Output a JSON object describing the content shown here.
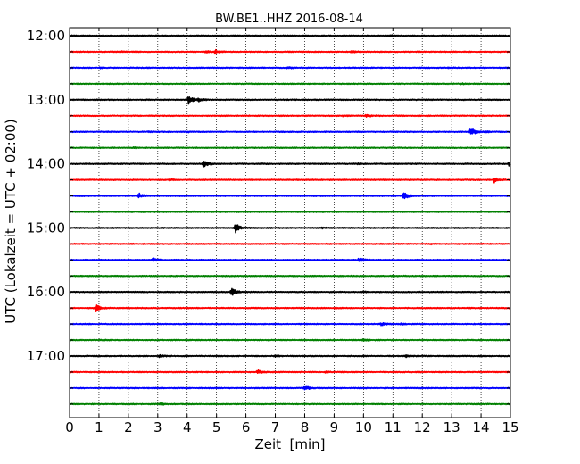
{
  "chart_data": {
    "type": "line",
    "title": "BW.BE1..HHZ 2016-08-14",
    "xlabel": "Zeit  [min]",
    "ylabel": "UTC (Lokalzeit = UTC + 02:00)",
    "xlim": [
      0,
      15
    ],
    "x_ticks": [
      0,
      1,
      2,
      3,
      4,
      5,
      6,
      7,
      8,
      9,
      10,
      11,
      12,
      13,
      14,
      15
    ],
    "x_tick_labels": [
      "0",
      "1",
      "2",
      "3",
      "4",
      "5",
      "6",
      "7",
      "8",
      "9",
      "10",
      "11",
      "12",
      "13",
      "14",
      "15"
    ],
    "y_tick_labels": [
      "12:00",
      "13:00",
      "14:00",
      "15:00",
      "16:00",
      "17:00"
    ],
    "trace_minutes": 15,
    "grid": "vertical dotted lines at each minute",
    "trace_colors": [
      "#000000",
      "#ff0000",
      "#0000ff",
      "#008000"
    ],
    "traces": [
      {
        "start": "12:00",
        "color_index": 0,
        "events": [
          [
            10.9,
            0.5
          ]
        ]
      },
      {
        "start": "12:15",
        "color_index": 1,
        "events": [
          [
            1.7,
            0.7
          ],
          [
            4.6,
            1.4
          ],
          [
            4.95,
            2.2
          ],
          [
            9.6,
            1.0
          ]
        ]
      },
      {
        "start": "12:30",
        "color_index": 2,
        "events": [
          [
            1.0,
            0.5
          ],
          [
            7.4,
            1.0
          ],
          [
            12.9,
            0.4
          ]
        ]
      },
      {
        "start": "12:45",
        "color_index": 3,
        "events": [
          [
            13.3,
            0.5
          ]
        ]
      },
      {
        "start": "13:00",
        "color_index": 0,
        "events": [
          [
            4.05,
            4.8
          ],
          [
            4.4,
            1.5
          ]
        ]
      },
      {
        "start": "13:15",
        "color_index": 1,
        "events": [
          [
            9.3,
            0.5
          ],
          [
            10.1,
            1.2
          ]
        ]
      },
      {
        "start": "13:30",
        "color_index": 2,
        "events": [
          [
            2.7,
            0.5
          ],
          [
            4.0,
            0.5
          ],
          [
            13.65,
            5.5
          ],
          [
            14.1,
            0.6
          ]
        ]
      },
      {
        "start": "13:45",
        "color_index": 3,
        "events": [
          [
            2.2,
            0.7
          ]
        ]
      },
      {
        "start": "14:00",
        "color_index": 0,
        "events": [
          [
            4.55,
            4.8
          ],
          [
            6.5,
            0.5
          ],
          [
            9.8,
            0.5
          ],
          [
            14.95,
            1.8
          ]
        ]
      },
      {
        "start": "14:15",
        "color_index": 1,
        "events": [
          [
            3.4,
            0.8
          ],
          [
            14.45,
            2.8
          ]
        ]
      },
      {
        "start": "14:30",
        "color_index": 2,
        "events": [
          [
            2.35,
            3.2
          ],
          [
            11.35,
            5.2
          ]
        ]
      },
      {
        "start": "14:45",
        "color_index": 3,
        "events": [
          [
            4.2,
            0.4
          ]
        ]
      },
      {
        "start": "15:00",
        "color_index": 0,
        "events": [
          [
            5.65,
            5.0
          ],
          [
            8.6,
            0.6
          ]
        ]
      },
      {
        "start": "15:15",
        "color_index": 1,
        "events": [
          [
            12.3,
            0.4
          ]
        ]
      },
      {
        "start": "15:30",
        "color_index": 2,
        "events": [
          [
            2.85,
            2.6
          ],
          [
            9.85,
            2.6
          ]
        ]
      },
      {
        "start": "15:45",
        "color_index": 3,
        "events": [
          [
            11.0,
            0.4
          ]
        ]
      },
      {
        "start": "16:00",
        "color_index": 0,
        "events": [
          [
            5.5,
            5.0
          ],
          [
            10.0,
            0.6
          ]
        ]
      },
      {
        "start": "16:15",
        "color_index": 1,
        "events": [
          [
            0.9,
            4.0
          ],
          [
            9.0,
            0.6
          ]
        ]
      },
      {
        "start": "16:30",
        "color_index": 2,
        "events": [
          [
            10.6,
            1.6
          ],
          [
            11.3,
            1.0
          ]
        ]
      },
      {
        "start": "16:45",
        "color_index": 3,
        "events": [
          [
            1.0,
            0.5
          ],
          [
            10.0,
            1.2
          ]
        ]
      },
      {
        "start": "17:00",
        "color_index": 0,
        "events": [
          [
            3.05,
            1.4
          ],
          [
            7.0,
            0.5
          ],
          [
            11.45,
            1.4
          ]
        ]
      },
      {
        "start": "17:15",
        "color_index": 1,
        "events": [
          [
            6.4,
            2.0
          ],
          [
            8.7,
            0.5
          ]
        ]
      },
      {
        "start": "17:30",
        "color_index": 2,
        "events": [
          [
            8.0,
            2.6
          ]
        ]
      },
      {
        "start": "17:45",
        "color_index": 3,
        "events": [
          [
            3.1,
            0.9
          ]
        ]
      }
    ]
  }
}
